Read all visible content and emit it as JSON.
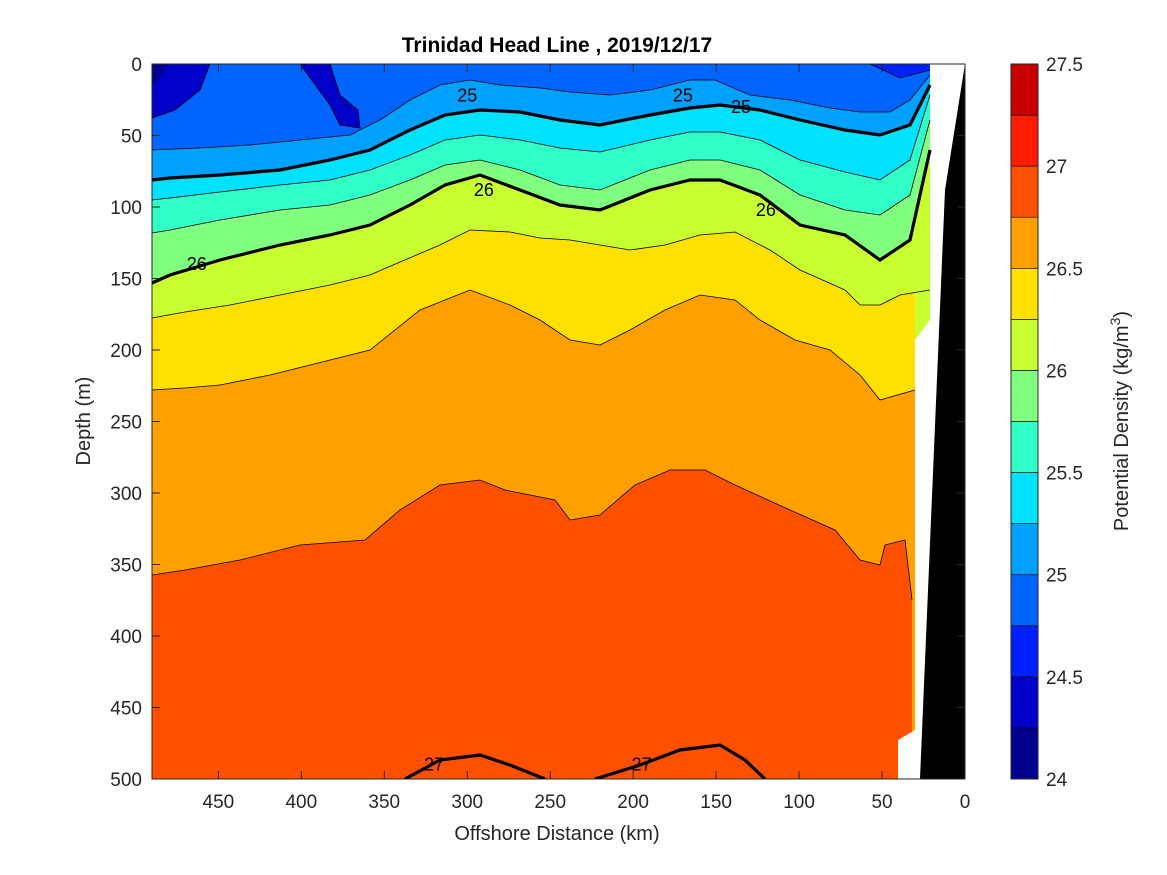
{
  "chart_data": {
    "type": "contour",
    "title": "Trinidad Head Line , 2019/12/17",
    "xlabel": "Offshore Distance (km)",
    "ylabel": "Depth (m)",
    "xlim": [
      490,
      0
    ],
    "ylim": [
      0,
      500
    ],
    "x_ticks": [
      "450",
      "400",
      "350",
      "300",
      "250",
      "200",
      "150",
      "100",
      "50",
      "0"
    ],
    "y_ticks": [
      "0",
      "50",
      "100",
      "150",
      "200",
      "250",
      "300",
      "350",
      "400",
      "450",
      "500"
    ],
    "colorbar": {
      "label_main": "Potential Density (kg/m",
      "label_sup": "3",
      "label_end": ")",
      "range": [
        24,
        27.5
      ],
      "ticks": [
        "24",
        "24.5",
        "25",
        "25.5",
        "26",
        "26.5",
        "27",
        "27.5"
      ],
      "levels": [
        24,
        24.25,
        24.5,
        24.75,
        25,
        25.25,
        25.5,
        25.75,
        26,
        26.25,
        26.5,
        26.75,
        27,
        27.25,
        27.5
      ],
      "colors": [
        "#00008f",
        "#0000c8",
        "#0020ff",
        "#0064ff",
        "#00a0ff",
        "#00e0ff",
        "#30ffc8",
        "#80ff80",
        "#c8ff30",
        "#ffe000",
        "#ffa000",
        "#ff5000",
        "#ff1c00",
        "#c80000"
      ]
    },
    "contour_labels": [
      {
        "text": "25",
        "x": 300,
        "depth": 22
      },
      {
        "text": "25",
        "x": 170,
        "depth": 22
      },
      {
        "text": "25",
        "x": 135,
        "depth": 30
      },
      {
        "text": "26",
        "x": 290,
        "depth": 88
      },
      {
        "text": "26",
        "x": 120,
        "depth": 102
      },
      {
        "text": "26",
        "x": 463,
        "depth": 140
      },
      {
        "text": "27",
        "x": 320,
        "depth": 490
      },
      {
        "text": "27",
        "x": 195,
        "depth": 490
      }
    ],
    "grid": false,
    "colorbar_placement": "right"
  }
}
